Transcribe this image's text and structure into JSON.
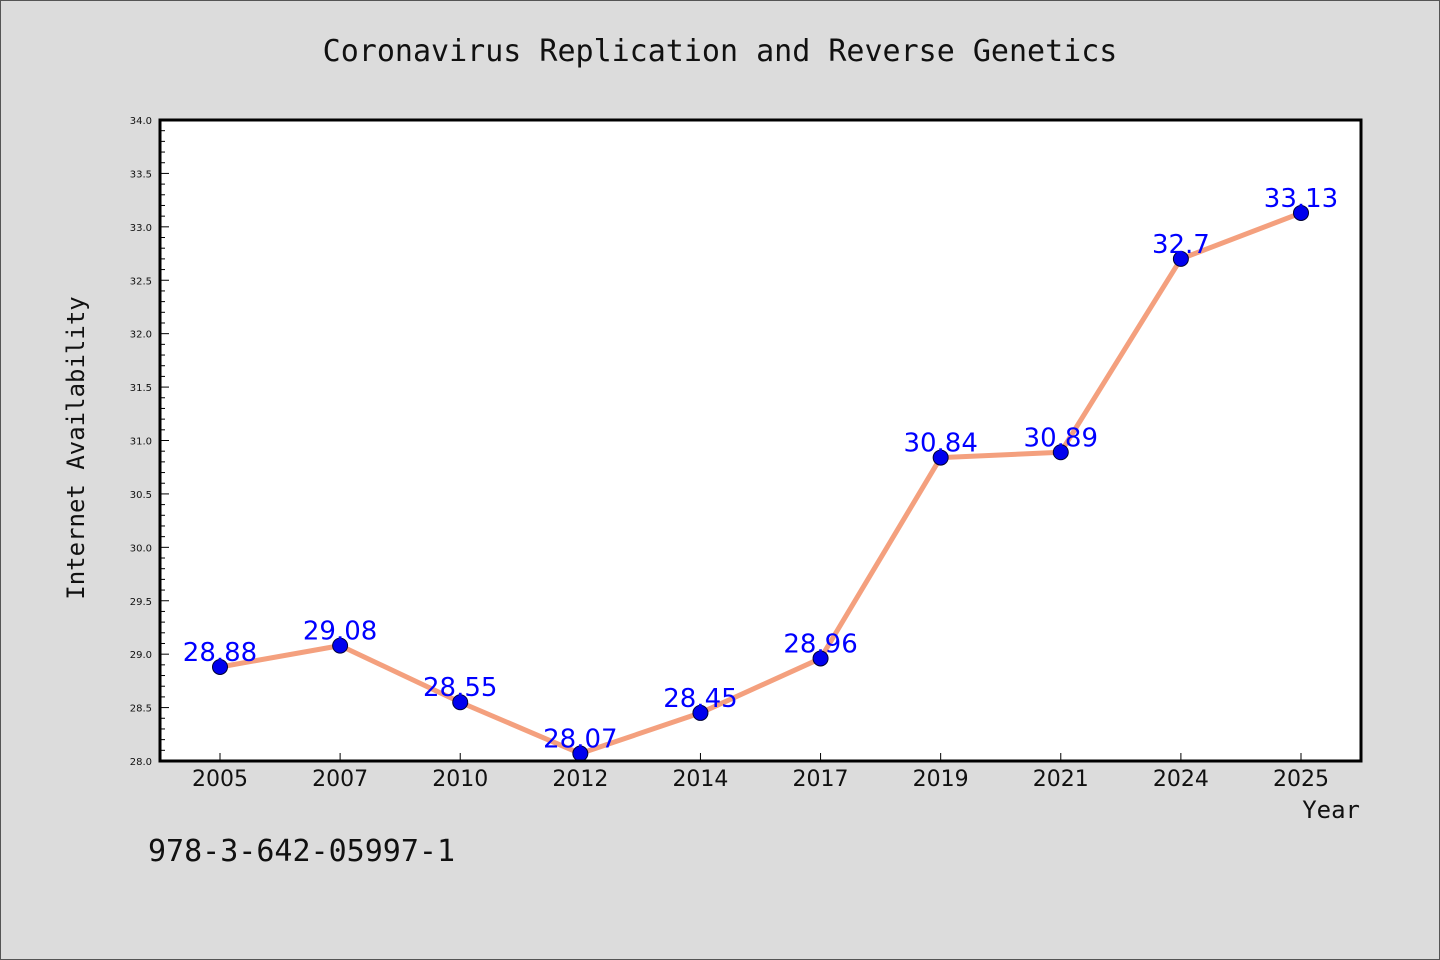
{
  "chart_data": {
    "type": "line",
    "title": "Coronavirus Replication and Reverse Genetics",
    "xlabel": "Year",
    "ylabel": "Internet Availability",
    "categories": [
      "2005",
      "2007",
      "2010",
      "2012",
      "2014",
      "2017",
      "2019",
      "2021",
      "2024",
      "2025"
    ],
    "series": [
      {
        "values": [
          28.88,
          29.08,
          28.55,
          28.07,
          28.45,
          28.96,
          30.84,
          30.89,
          32.7,
          33.13
        ]
      }
    ],
    "data_labels": [
      "28.88",
      "29.08",
      "28.55",
      "28.07",
      "28.45",
      "28.96",
      "30.84",
      "30.89",
      "32.7",
      "33.13"
    ],
    "ylim": [
      28.0,
      34.0
    ],
    "yticks": [
      "28.0",
      "28.5",
      "29.0",
      "29.5",
      "30.0",
      "30.5",
      "31.0",
      "31.5",
      "32.0",
      "32.5",
      "33.0",
      "33.5",
      "34.0"
    ],
    "grid": false,
    "colors": {
      "line": "#f4a07e",
      "marker": "#0000ee",
      "data_label": "#0000ff",
      "background": "#dcdcdc",
      "plot_background": "#ffffff"
    }
  },
  "footer": {
    "isbn": "978-3-642-05997-1"
  }
}
